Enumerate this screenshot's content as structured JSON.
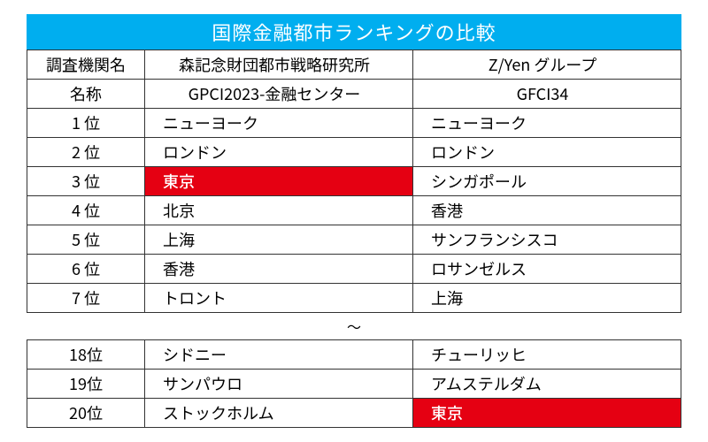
{
  "title": "国際金融都市ランキングの比較",
  "colors": {
    "title_bg": "#00aeef",
    "title_fg": "#ffffff",
    "cell_bg": "#ffffff",
    "cell_fg": "#000000",
    "highlight_bg": "#e50012",
    "highlight_fg": "#ffffff",
    "border": "#333333"
  },
  "header": {
    "rank_label": "調査機関名",
    "org_a": "森記念財団都市戦略研究所",
    "org_b": "Z/Yen グループ",
    "name_label": "名称",
    "name_a": "GPCI2023-金融センター",
    "name_b": "GFCI34"
  },
  "rows_top": [
    {
      "rank": "1 位",
      "a": "ニューヨーク",
      "b": "ニューヨーク",
      "hl_a": false,
      "hl_b": false
    },
    {
      "rank": "2 位",
      "a": "ロンドン",
      "b": "ロンドン",
      "hl_a": false,
      "hl_b": false
    },
    {
      "rank": "3 位",
      "a": "東京",
      "b": "シンガポール",
      "hl_a": true,
      "hl_b": false
    },
    {
      "rank": "4 位",
      "a": "北京",
      "b": "香港",
      "hl_a": false,
      "hl_b": false
    },
    {
      "rank": "5 位",
      "a": "上海",
      "b": "サンフランシスコ",
      "hl_a": false,
      "hl_b": false
    },
    {
      "rank": "6 位",
      "a": "香港",
      "b": "ロサンゼルス",
      "hl_a": false,
      "hl_b": false
    },
    {
      "rank": "7 位",
      "a": "トロント",
      "b": "上海",
      "hl_a": false,
      "hl_b": false
    }
  ],
  "ellipsis": "〜",
  "rows_bottom": [
    {
      "rank": "18位",
      "a": "シドニー",
      "b": "チューリッヒ",
      "hl_a": false,
      "hl_b": false
    },
    {
      "rank": "19位",
      "a": "サンパウロ",
      "b": "アムステルダム",
      "hl_a": false,
      "hl_b": false
    },
    {
      "rank": "20位",
      "a": "ストックホルム",
      "b": "東京",
      "hl_a": false,
      "hl_b": true
    }
  ]
}
